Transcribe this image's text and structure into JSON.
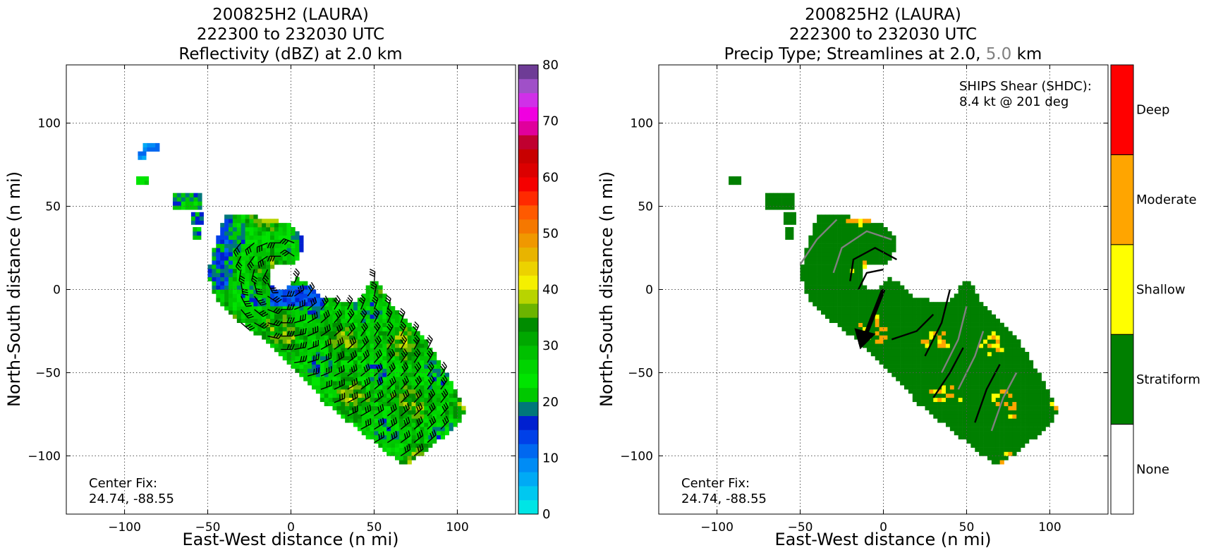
{
  "chart_data": [
    {
      "type": "heatmap",
      "title": [
        "200825H2 (LAURA)",
        "222300 to 232030 UTC",
        "Reflectivity (dBZ) at 2.0 km"
      ],
      "xlabel": "East-West distance (n mi)",
      "ylabel": "North-South distance (n mi)",
      "xlim": [
        -135,
        135
      ],
      "ylim": [
        -135,
        135
      ],
      "xticks": [
        -100,
        -50,
        0,
        50,
        100
      ],
      "yticks": [
        -100,
        -50,
        0,
        50,
        100
      ],
      "xtick_labels": [
        "−100",
        "−50",
        "0",
        "50",
        "100"
      ],
      "ytick_labels": [
        "−100",
        "−50",
        "0",
        "50",
        "100"
      ],
      "grid": true,
      "annotation": [
        "Center Fix:",
        "24.74, -88.55"
      ],
      "colorbar": {
        "min": 0,
        "max": 80,
        "step": 2.5,
        "ticks": [
          0,
          10,
          20,
          30,
          40,
          50,
          60,
          70,
          80
        ],
        "tick_labels": [
          "0",
          "10",
          "20",
          "30",
          "40",
          "50",
          "60",
          "70",
          "80"
        ],
        "colors": [
          "#00e5e5",
          "#00c8f0",
          "#00aaf5",
          "#008cf5",
          "#0068f0",
          "#0040e8",
          "#0020d0",
          "#00787a",
          "#00c800",
          "#00e400",
          "#00d400",
          "#00c000",
          "#00a800",
          "#008c00",
          "#6cb400",
          "#b8d400",
          "#f5f000",
          "#ecd200",
          "#e8b400",
          "#f09800",
          "#f57800",
          "#ff5a00",
          "#ff2a00",
          "#f50000",
          "#dc0000",
          "#c80000",
          "#c00030",
          "#e0009c",
          "#f000e0",
          "#d030e8",
          "#a050c8",
          "#6e3c96"
        ],
        "top_color": "#000000"
      },
      "field": {
        "description_free": true,
        "blobs": [
          {
            "x": -85,
            "y": 85,
            "rx": 4,
            "ry": 2,
            "value": 8
          },
          {
            "x": -90,
            "y": 80,
            "rx": 2,
            "ry": 2,
            "value": 10
          },
          {
            "x": -90,
            "y": 65,
            "rx": 3,
            "ry": 2,
            "value": 22
          },
          {
            "x": -63,
            "y": 52,
            "rx": 8,
            "ry": 4,
            "value": 20
          },
          {
            "x": -57,
            "y": 42,
            "rx": 3,
            "ry": 3,
            "value": 18
          },
          {
            "x": -57,
            "y": 33,
            "rx": 2,
            "ry": 3,
            "value": 20
          }
        ],
        "band": {
          "x1": -20,
          "y1": 20,
          "x2": 80,
          "y2": -75,
          "halfwidth": 26,
          "value": 33
        }
      },
      "wind_barbs_description": "black wind barbs over echo"
    },
    {
      "type": "heatmap",
      "title_line1": "200825H2 (LAURA)",
      "title_line2": "222300 to 232030 UTC",
      "title_line3_part1": "Precip Type; Streamlines at 2.0,",
      "title_line3_part2": "5.0",
      "title_line3_part3": "km",
      "title_part2_color": "#808080",
      "xlabel": "East-West distance (n mi)",
      "ylabel": "North-South distance (n mi)",
      "xlim": [
        -135,
        135
      ],
      "ylim": [
        -135,
        135
      ],
      "xticks": [
        -100,
        -50,
        0,
        50,
        100
      ],
      "yticks": [
        -100,
        -50,
        0,
        50,
        100
      ],
      "xtick_labels": [
        "−100",
        "−50",
        "0",
        "50",
        "100"
      ],
      "ytick_labels": [
        "−100",
        "−50",
        "0",
        "50",
        "100"
      ],
      "grid": true,
      "annotation": [
        "Center Fix:",
        "24.74, -88.55"
      ],
      "shear_text": [
        "SHIPS Shear (SHDC):",
        "8.4 kt @ 201 deg"
      ],
      "shear_vector": {
        "direction_deg": 201,
        "speed_kt": 8.4
      },
      "categories": [
        "None",
        "Stratiform",
        "Shallow",
        "Moderate",
        "Deep"
      ],
      "category_colors": [
        "#ffffff",
        "#007f00",
        "#ffff00",
        "#ffa500",
        "#ff0000"
      ],
      "streamline_colors": {
        "2.0": "#000000",
        "5.0": "#808080"
      }
    }
  ]
}
